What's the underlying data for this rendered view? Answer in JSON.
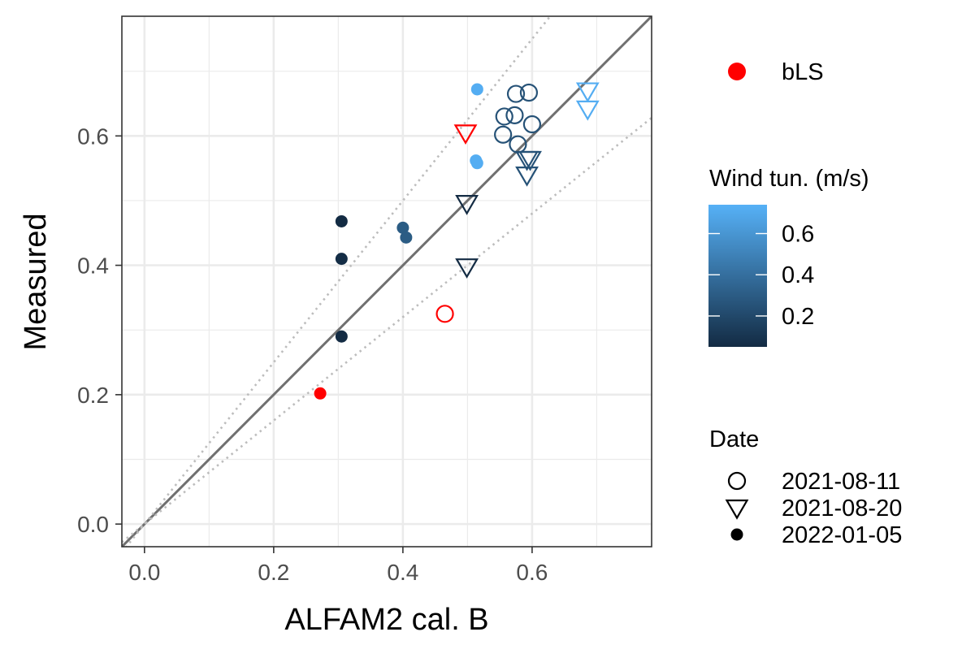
{
  "chart_data": {
    "type": "scatter",
    "xlabel": "ALFAM2 cal. B",
    "ylabel": "Measured",
    "xlim": [
      -0.035,
      0.785
    ],
    "ylim": [
      -0.035,
      0.785
    ],
    "x_ticks": [
      0.0,
      0.2,
      0.4,
      0.6
    ],
    "y_ticks": [
      0.0,
      0.2,
      0.4,
      0.6
    ],
    "x_tick_labels": [
      "0.0",
      "0.2",
      "0.4",
      "0.6"
    ],
    "y_tick_labels": [
      "0.0",
      "0.2",
      "0.4",
      "0.6"
    ],
    "grid": true,
    "legend_position": "right",
    "reference_lines": [
      {
        "slope": 1.0,
        "style": "solid",
        "color": "#707070"
      },
      {
        "slope": 1.25,
        "style": "dotted",
        "color": "#bdbdbd"
      },
      {
        "slope": 0.8,
        "style": "dotted",
        "color": "#bdbdbd"
      }
    ],
    "legend": {
      "bls_label": "bLS",
      "bls_color": "#ff0000",
      "color_title": "Wind tun. (m/s)",
      "color_scale": {
        "low": "#132b43",
        "high": "#56b1f7",
        "min": 0.05,
        "max": 0.74
      },
      "color_ticks": [
        0.2,
        0.4,
        0.6
      ],
      "color_tick_labels": [
        "0.2",
        "0.4",
        "0.6"
      ],
      "shape_title": "Date",
      "shape_entries": [
        {
          "label": "2021-08-11",
          "shape": "circle-open"
        },
        {
          "label": "2021-08-20",
          "shape": "triangle-down-open"
        },
        {
          "label": "2022-01-05",
          "shape": "circle-filled"
        }
      ]
    },
    "series": [
      {
        "name": "bLS",
        "source": "bLS",
        "points": [
          {
            "x": 0.272,
            "y": 0.202,
            "date": "2022-01-05"
          },
          {
            "x": 0.465,
            "y": 0.325,
            "date": "2021-08-11"
          },
          {
            "x": 0.497,
            "y": 0.605,
            "date": "2021-08-20"
          }
        ]
      },
      {
        "name": "Wind tunnel",
        "source": "wind",
        "points": [
          {
            "x": 0.305,
            "y": 0.468,
            "date": "2022-01-05",
            "wind": 0.05
          },
          {
            "x": 0.305,
            "y": 0.41,
            "date": "2022-01-05",
            "wind": 0.06
          },
          {
            "x": 0.305,
            "y": 0.29,
            "date": "2022-01-05",
            "wind": 0.05
          },
          {
            "x": 0.4,
            "y": 0.458,
            "date": "2022-01-05",
            "wind": 0.3
          },
          {
            "x": 0.405,
            "y": 0.443,
            "date": "2022-01-05",
            "wind": 0.3
          },
          {
            "x": 0.515,
            "y": 0.672,
            "date": "2022-01-05",
            "wind": 0.72
          },
          {
            "x": 0.513,
            "y": 0.562,
            "date": "2022-01-05",
            "wind": 0.72
          },
          {
            "x": 0.515,
            "y": 0.558,
            "date": "2022-01-05",
            "wind": 0.72
          },
          {
            "x": 0.557,
            "y": 0.63,
            "date": "2021-08-11",
            "wind": 0.25
          },
          {
            "x": 0.555,
            "y": 0.602,
            "date": "2021-08-11",
            "wind": 0.25
          },
          {
            "x": 0.575,
            "y": 0.665,
            "date": "2021-08-11",
            "wind": 0.25
          },
          {
            "x": 0.573,
            "y": 0.632,
            "date": "2021-08-11",
            "wind": 0.25
          },
          {
            "x": 0.578,
            "y": 0.587,
            "date": "2021-08-11",
            "wind": 0.25
          },
          {
            "x": 0.595,
            "y": 0.667,
            "date": "2021-08-11",
            "wind": 0.25
          },
          {
            "x": 0.6,
            "y": 0.618,
            "date": "2021-08-11",
            "wind": 0.25
          },
          {
            "x": 0.499,
            "y": 0.496,
            "date": "2021-08-20",
            "wind": 0.05
          },
          {
            "x": 0.499,
            "y": 0.398,
            "date": "2021-08-20",
            "wind": 0.05
          },
          {
            "x": 0.592,
            "y": 0.564,
            "date": "2021-08-20",
            "wind": 0.25
          },
          {
            "x": 0.597,
            "y": 0.564,
            "date": "2021-08-20",
            "wind": 0.25
          },
          {
            "x": 0.592,
            "y": 0.54,
            "date": "2021-08-20",
            "wind": 0.25
          },
          {
            "x": 0.686,
            "y": 0.67,
            "date": "2021-08-20",
            "wind": 0.72
          },
          {
            "x": 0.686,
            "y": 0.642,
            "date": "2021-08-20",
            "wind": 0.72
          }
        ]
      }
    ]
  }
}
